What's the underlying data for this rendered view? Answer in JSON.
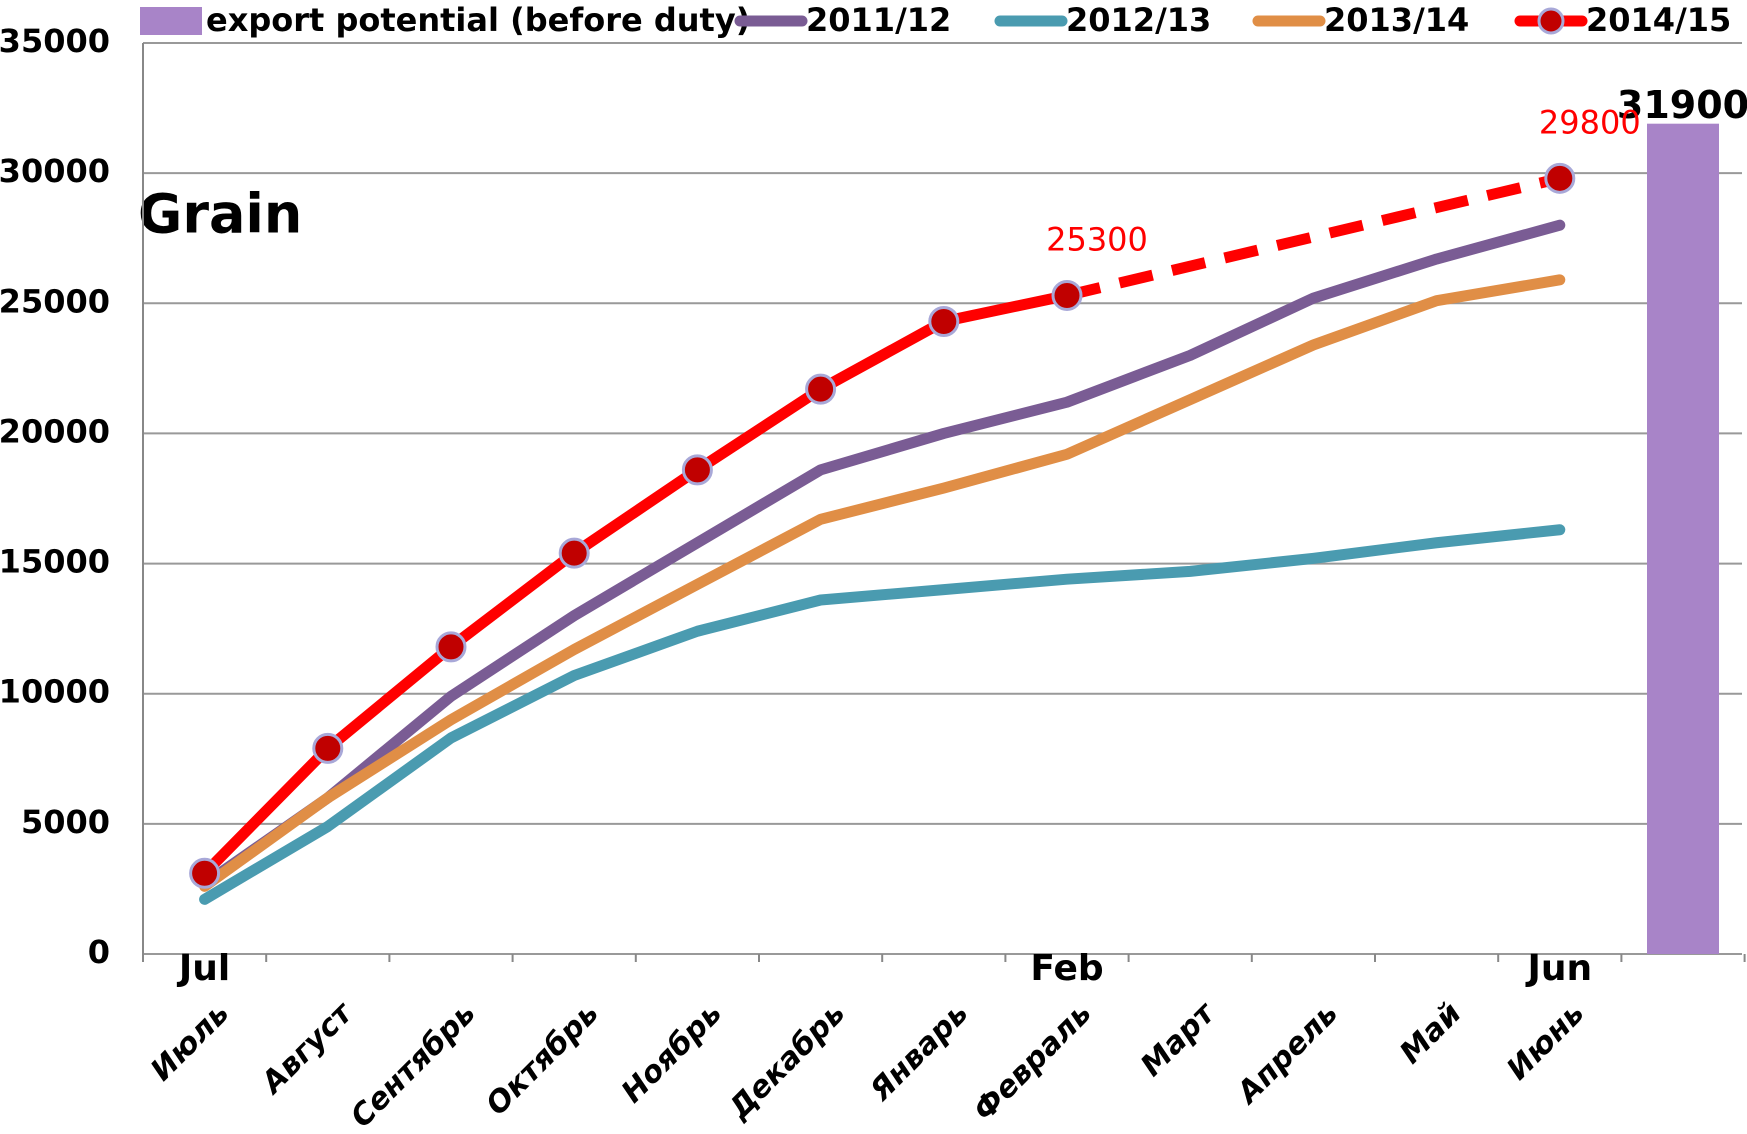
{
  "chart_data": {
    "type": "line",
    "title": "Grain",
    "categories": [
      "Июль",
      "Август",
      "Сентябрь",
      "Октябрь",
      "Ноябрь",
      "Декабрь",
      "Январь",
      "Февраль",
      "Март",
      "Апрель",
      "Май",
      "Июнь",
      null
    ],
    "series": [
      {
        "name": "export potential (before duty)",
        "type": "bar",
        "color": "#a884c8",
        "values": [
          null,
          null,
          null,
          null,
          null,
          null,
          null,
          null,
          null,
          null,
          null,
          null,
          31900
        ],
        "show_labels": [
          false,
          false,
          false,
          false,
          false,
          false,
          false,
          false,
          false,
          false,
          false,
          false,
          true
        ]
      },
      {
        "name": "2011/12",
        "type": "line",
        "color": "#7a5c94",
        "values": [
          2700,
          6000,
          9900,
          13000,
          15800,
          18600,
          20000,
          21200,
          23000,
          25200,
          26700,
          28000,
          null
        ]
      },
      {
        "name": "2012/13",
        "type": "line",
        "color": "#4a9bb0",
        "values": [
          2100,
          4900,
          8300,
          10700,
          12400,
          13600,
          14000,
          14400,
          14700,
          15200,
          15800,
          16300,
          null
        ]
      },
      {
        "name": "2013/14",
        "type": "line",
        "color": "#e08e46",
        "values": [
          2600,
          6000,
          9000,
          11700,
          14200,
          16700,
          17900,
          19200,
          21300,
          23400,
          25100,
          25900,
          null
        ]
      },
      {
        "name": "2014/15",
        "type": "line",
        "color": "#ff0000",
        "markers": true,
        "dashed_gaps": true,
        "values": [
          3100,
          7900,
          11800,
          15400,
          18600,
          21700,
          24300,
          25300,
          null,
          null,
          null,
          29800,
          null
        ],
        "show_labels": [
          false,
          false,
          false,
          false,
          false,
          false,
          false,
          true,
          false,
          false,
          false,
          true,
          false
        ]
      }
    ],
    "annotations": [
      {
        "text": "Jul",
        "category": 0
      },
      {
        "text": "Feb",
        "category": 7
      },
      {
        "text": "Jun",
        "category": 11
      }
    ],
    "ylim": [
      0,
      35000
    ],
    "yticks": [
      0,
      5000,
      10000,
      15000,
      20000,
      25000,
      30000,
      35000
    ],
    "grid": true
  }
}
